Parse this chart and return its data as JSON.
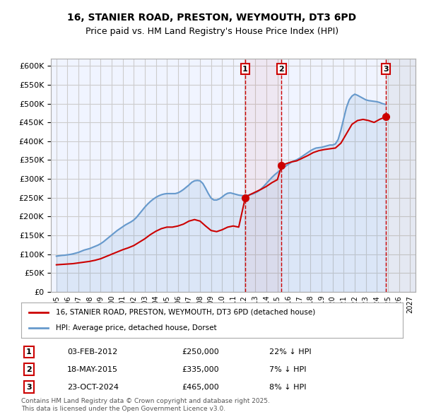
{
  "title": "16, STANIER ROAD, PRESTON, WEYMOUTH, DT3 6PD",
  "subtitle": "Price paid vs. HM Land Registry's House Price Index (HPI)",
  "legend_line1": "16, STANIER ROAD, PRESTON, WEYMOUTH, DT3 6PD (detached house)",
  "legend_line2": "HPI: Average price, detached house, Dorset",
  "footnote": "Contains HM Land Registry data © Crown copyright and database right 2025.\nThis data is licensed under the Open Government Licence v3.0.",
  "transactions": [
    {
      "num": 1,
      "date": "03-FEB-2012",
      "price": "£250,000",
      "pct": "22% ↓ HPI",
      "x": 2012.09
    },
    {
      "num": 2,
      "date": "18-MAY-2015",
      "price": "£335,000",
      "pct": "7% ↓ HPI",
      "x": 2015.38
    },
    {
      "num": 3,
      "date": "23-OCT-2024",
      "price": "£465,000",
      "pct": "8% ↓ HPI",
      "x": 2024.81
    }
  ],
  "ylim": [
    0,
    620000
  ],
  "yticks": [
    0,
    50000,
    100000,
    150000,
    200000,
    250000,
    300000,
    350000,
    400000,
    450000,
    500000,
    550000,
    600000
  ],
  "xlim": [
    1994.5,
    2027.5
  ],
  "xticks": [
    1995,
    1996,
    1997,
    1998,
    1999,
    2000,
    2001,
    2002,
    2003,
    2004,
    2005,
    2006,
    2007,
    2008,
    2009,
    2010,
    2011,
    2012,
    2013,
    2014,
    2015,
    2016,
    2017,
    2018,
    2019,
    2020,
    2021,
    2022,
    2023,
    2024,
    2025,
    2026,
    2027
  ],
  "red_color": "#cc0000",
  "blue_color": "#6699cc",
  "grid_color": "#cccccc",
  "bg_color": "#f0f4ff",
  "hpi_x": [
    1995.0,
    1995.25,
    1995.5,
    1995.75,
    1996.0,
    1996.25,
    1996.5,
    1996.75,
    1997.0,
    1997.25,
    1997.5,
    1997.75,
    1998.0,
    1998.25,
    1998.5,
    1998.75,
    1999.0,
    1999.25,
    1999.5,
    1999.75,
    2000.0,
    2000.25,
    2000.5,
    2000.75,
    2001.0,
    2001.25,
    2001.5,
    2001.75,
    2002.0,
    2002.25,
    2002.5,
    2002.75,
    2003.0,
    2003.25,
    2003.5,
    2003.75,
    2004.0,
    2004.25,
    2004.5,
    2004.75,
    2005.0,
    2005.25,
    2005.5,
    2005.75,
    2006.0,
    2006.25,
    2006.5,
    2006.75,
    2007.0,
    2007.25,
    2007.5,
    2007.75,
    2008.0,
    2008.25,
    2008.5,
    2008.75,
    2009.0,
    2009.25,
    2009.5,
    2009.75,
    2010.0,
    2010.25,
    2010.5,
    2010.75,
    2011.0,
    2011.25,
    2011.5,
    2011.75,
    2012.0,
    2012.25,
    2012.5,
    2012.75,
    2013.0,
    2013.25,
    2013.5,
    2013.75,
    2014.0,
    2014.25,
    2014.5,
    2014.75,
    2015.0,
    2015.25,
    2015.5,
    2015.75,
    2016.0,
    2016.25,
    2016.5,
    2016.75,
    2017.0,
    2017.25,
    2017.5,
    2017.75,
    2018.0,
    2018.25,
    2018.5,
    2018.75,
    2019.0,
    2019.25,
    2019.5,
    2019.75,
    2020.0,
    2020.25,
    2020.5,
    2020.75,
    2021.0,
    2021.25,
    2021.5,
    2021.75,
    2022.0,
    2022.25,
    2022.5,
    2022.75,
    2023.0,
    2023.25,
    2023.5,
    2023.75,
    2024.0,
    2024.25,
    2024.5,
    2024.75
  ],
  "hpi_y": [
    95000,
    96000,
    97000,
    97500,
    98500,
    99500,
    101000,
    103000,
    105000,
    108000,
    111000,
    113000,
    115000,
    118000,
    121000,
    124000,
    128000,
    133000,
    139000,
    145000,
    151000,
    157000,
    163000,
    168000,
    173000,
    178000,
    182000,
    186000,
    191000,
    198000,
    207000,
    216000,
    225000,
    233000,
    240000,
    246000,
    251000,
    255000,
    258000,
    260000,
    261000,
    261000,
    261000,
    261000,
    263000,
    267000,
    272000,
    278000,
    284000,
    291000,
    295000,
    296000,
    295000,
    288000,
    275000,
    261000,
    249000,
    244000,
    244000,
    247000,
    252000,
    258000,
    262000,
    263000,
    261000,
    259000,
    257000,
    256000,
    255000,
    256000,
    258000,
    260000,
    263000,
    267000,
    273000,
    280000,
    288000,
    296000,
    304000,
    311000,
    317000,
    323000,
    329000,
    334000,
    339000,
    344000,
    348000,
    351000,
    355000,
    360000,
    365000,
    370000,
    375000,
    379000,
    382000,
    383000,
    384000,
    386000,
    388000,
    390000,
    390000,
    393000,
    405000,
    430000,
    460000,
    490000,
    510000,
    520000,
    525000,
    522000,
    518000,
    514000,
    510000,
    508000,
    507000,
    506000,
    505000,
    503000,
    500000,
    498000
  ],
  "red_x": [
    1995.0,
    1995.5,
    1996.0,
    1996.5,
    1997.0,
    1997.5,
    1998.0,
    1998.5,
    1999.0,
    1999.5,
    2000.0,
    2000.5,
    2001.0,
    2001.5,
    2002.0,
    2002.5,
    2003.0,
    2003.5,
    2004.0,
    2004.5,
    2005.0,
    2005.5,
    2006.0,
    2006.5,
    2007.0,
    2007.5,
    2008.0,
    2008.5,
    2009.0,
    2009.5,
    2010.0,
    2010.5,
    2011.0,
    2011.5,
    2012.09,
    2012.5,
    2013.0,
    2013.5,
    2014.0,
    2014.5,
    2015.0,
    2015.38,
    2015.75,
    2016.25,
    2016.75,
    2017.25,
    2017.75,
    2018.25,
    2018.75,
    2019.25,
    2019.75,
    2020.25,
    2020.75,
    2021.25,
    2021.75,
    2022.25,
    2022.75,
    2023.25,
    2023.75,
    2024.25,
    2024.81
  ],
  "red_y": [
    72000,
    73000,
    74000,
    75000,
    77000,
    79000,
    81000,
    84000,
    88000,
    94000,
    100000,
    106000,
    112000,
    117000,
    123000,
    132000,
    141000,
    152000,
    161000,
    168000,
    172000,
    172000,
    175000,
    180000,
    188000,
    192000,
    188000,
    175000,
    163000,
    160000,
    165000,
    172000,
    175000,
    172000,
    250000,
    258000,
    265000,
    272000,
    280000,
    290000,
    298000,
    335000,
    340000,
    345000,
    348000,
    355000,
    362000,
    370000,
    375000,
    378000,
    380000,
    382000,
    395000,
    420000,
    445000,
    455000,
    458000,
    455000,
    450000,
    458000,
    465000
  ],
  "shade_x1": 2012.09,
  "shade_x2": 2015.38,
  "shade_x3": 2024.81
}
